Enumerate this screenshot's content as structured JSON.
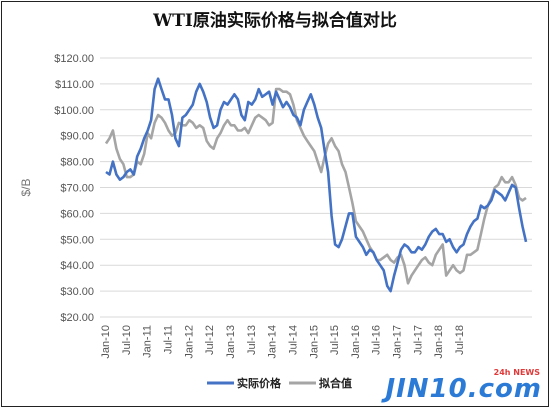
{
  "chart_data": {
    "type": "line",
    "title": "WTI原油实际价格与拟合值对比",
    "ylabel": "$/B",
    "xlabel": "",
    "ylim": [
      20,
      120
    ],
    "yticks": [
      "$20.00",
      "$30.00",
      "$40.00",
      "$50.00",
      "$60.00",
      "$70.00",
      "$80.00",
      "$90.00",
      "$100.00",
      "$110.00",
      "$120.00"
    ],
    "ytick_values": [
      20,
      30,
      40,
      50,
      60,
      70,
      80,
      90,
      100,
      110,
      120
    ],
    "xticks": [
      "Jan-10",
      "Jul-10",
      "Jan-11",
      "Jul-11",
      "Jan-12",
      "Jul-12",
      "Jan-13",
      "Jul-13",
      "Jan-14",
      "Jul-14",
      "Jan-15",
      "Jul-15",
      "Jan-16",
      "Jul-16",
      "Jan-17",
      "Jul-17",
      "Jan-18",
      "Jul-18"
    ],
    "legend_position": "bottom",
    "grid": true,
    "series": [
      {
        "name": "实际价格",
        "color": "#4472C4",
        "values": [
          76,
          75,
          80,
          75,
          73,
          74,
          76,
          77,
          75,
          82,
          85,
          89,
          92,
          96,
          108,
          112,
          108,
          104,
          104,
          98,
          89,
          86,
          97,
          98,
          100,
          102,
          107,
          110,
          107,
          103,
          97,
          93,
          94,
          100,
          103,
          102,
          104,
          106,
          104,
          98,
          96,
          103,
          102,
          104,
          108,
          105,
          106,
          107,
          102,
          107,
          104,
          101,
          103,
          101,
          98,
          97,
          94,
          100,
          103,
          106,
          102,
          97,
          93,
          84,
          76,
          59,
          48,
          47,
          50,
          55,
          60,
          60,
          51,
          49,
          47,
          44,
          46,
          45,
          42,
          40,
          38,
          32,
          30,
          36,
          41,
          46,
          48,
          47,
          45,
          45,
          47,
          46,
          48,
          51,
          53,
          54,
          52,
          52,
          49,
          50,
          47,
          45,
          47,
          48,
          52,
          55,
          57,
          58,
          63,
          62,
          63,
          65,
          69,
          68,
          67,
          65,
          68,
          71,
          70,
          62,
          55,
          49
        ]
      },
      {
        "name": "拟合值",
        "color": "#A5A5A5",
        "values": [
          87,
          89,
          92,
          85,
          81,
          79,
          74,
          74,
          75,
          80,
          79,
          83,
          91,
          89,
          95,
          98,
          97,
          95,
          92,
          90,
          91,
          95,
          94,
          94,
          96,
          95,
          93,
          94,
          93,
          88,
          86,
          85,
          89,
          91,
          94,
          96,
          94,
          94,
          92,
          92,
          93,
          91,
          94,
          97,
          98,
          97,
          96,
          94,
          95,
          108,
          108,
          107,
          107,
          106,
          102,
          96,
          93,
          90,
          88,
          86,
          84,
          80,
          76,
          82,
          87,
          89,
          86,
          84,
          79,
          76,
          70,
          64,
          57,
          55,
          53,
          50,
          47,
          45,
          42,
          42,
          43,
          44,
          42,
          41,
          43,
          44,
          40,
          33,
          36,
          38,
          40,
          42,
          43,
          41,
          40,
          44,
          46,
          48,
          36,
          38,
          40,
          38,
          37,
          38,
          44,
          44,
          45,
          46,
          52,
          58,
          63,
          66,
          70,
          71,
          74,
          72,
          72,
          74,
          71,
          66,
          65,
          66
        ]
      }
    ]
  },
  "legend": {
    "actual": "实际价格",
    "fitted": "拟合值"
  },
  "watermark": {
    "logo": "JIN10.com",
    "sub": "24h NEWS"
  }
}
